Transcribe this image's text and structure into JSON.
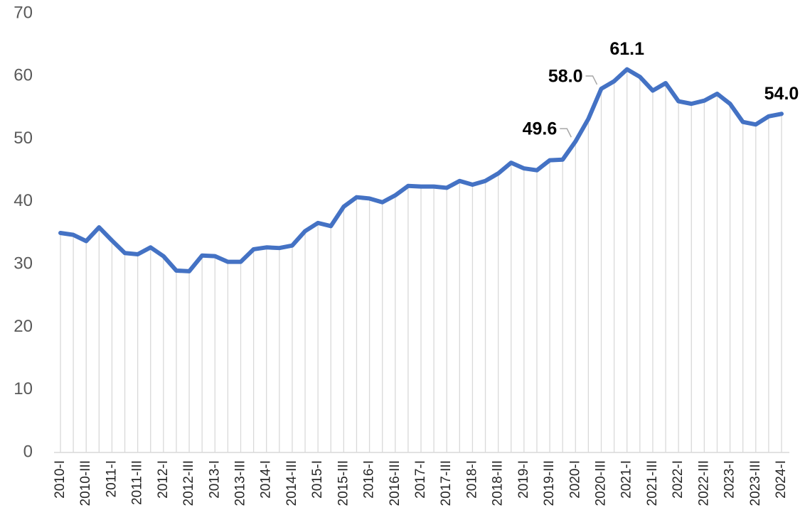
{
  "chart_data": {
    "type": "line",
    "categories": [
      "2010-I",
      null,
      "2010-III",
      null,
      "2011-I",
      null,
      "2011-III",
      null,
      "2012-I",
      null,
      "2012-III",
      null,
      "2013-I",
      null,
      "2013-III",
      null,
      "2014-I",
      null,
      "2014-III",
      null,
      "2015-I",
      null,
      "2015-III",
      null,
      "2016-I",
      null,
      "2016-III",
      null,
      "2017-I",
      null,
      "2017-III",
      null,
      "2018-I",
      null,
      "2018-III",
      null,
      "2019-I",
      null,
      "2019-III",
      null,
      "2020-I",
      null,
      "2020-III",
      null,
      "2021-I",
      null,
      "2021-III",
      null,
      "2022-I",
      null,
      "2022-III",
      null,
      "2023-I",
      null,
      "2023-III",
      null,
      "2024-I"
    ],
    "series": [
      {
        "color": "#4472c4",
        "values": [
          35.0,
          34.7,
          33.7,
          35.9,
          33.8,
          31.8,
          31.6,
          32.7,
          31.3,
          29.0,
          28.9,
          31.4,
          31.3,
          30.4,
          30.4,
          32.4,
          32.7,
          32.6,
          33.0,
          35.3,
          36.6,
          36.1,
          39.2,
          40.7,
          40.5,
          39.9,
          41.0,
          42.5,
          42.4,
          42.4,
          42.2,
          43.3,
          42.7,
          43.3,
          44.5,
          46.2,
          45.3,
          45.0,
          46.6,
          46.7,
          49.6,
          53.2,
          58.0,
          59.2,
          61.1,
          59.9,
          57.7,
          58.9,
          56.0,
          55.6,
          56.1,
          57.2,
          55.6,
          52.7,
          52.3,
          53.6,
          54.0
        ],
        "value_labels": [
          null,
          null,
          null,
          null,
          null,
          null,
          null,
          null,
          null,
          null,
          null,
          null,
          null,
          null,
          null,
          null,
          null,
          null,
          null,
          null,
          null,
          null,
          null,
          null,
          null,
          null,
          null,
          null,
          null,
          null,
          null,
          null,
          null,
          null,
          null,
          null,
          null,
          null,
          null,
          null,
          "49.6",
          null,
          "58.0",
          null,
          "61.1",
          null,
          null,
          null,
          null,
          null,
          null,
          null,
          null,
          null,
          null,
          null,
          "54.0"
        ]
      }
    ],
    "ylim": [
      0,
      70
    ],
    "yticks": [
      0,
      10,
      20,
      30,
      40,
      50,
      60,
      70
    ],
    "drop_lines": true
  }
}
